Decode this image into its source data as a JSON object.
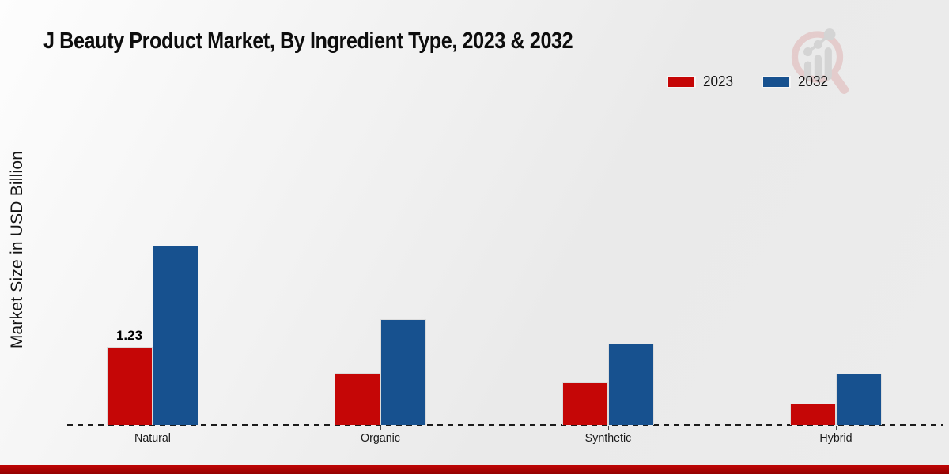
{
  "chart_data": {
    "type": "bar",
    "title": "J Beauty Product Market, By Ingredient Type, 2023 & 2032",
    "ylabel": "Market Size in USD Billion",
    "xlabel": "",
    "categories": [
      "Natural",
      "Organic",
      "Synthetic",
      "Hybrid"
    ],
    "series": [
      {
        "name": "2023",
        "color": "#c50606",
        "values": [
          1.23,
          0.82,
          0.67,
          0.33
        ],
        "bar_labels": [
          "1.23",
          "",
          "",
          ""
        ]
      },
      {
        "name": "2032",
        "color": "#17518f",
        "values": [
          2.82,
          1.66,
          1.28,
          0.81
        ],
        "bar_labels": [
          "",
          "",
          "",
          ""
        ]
      }
    ],
    "ylim": [
      0,
      3.5
    ],
    "grid": false,
    "axis_baseline": "dashed",
    "legend_position": "top-right"
  },
  "legend": {
    "items": [
      {
        "label": "2023",
        "color": "#c50606"
      },
      {
        "label": "2032",
        "color": "#17518f"
      }
    ]
  },
  "watermark": {
    "name": "magnifier-bar-chart-logo",
    "ring_color": "#dfb3b3",
    "glyph_color": "#c3c3c3"
  },
  "footer": {
    "accent_color_top": "#c30505",
    "accent_color_bottom": "#940101"
  }
}
